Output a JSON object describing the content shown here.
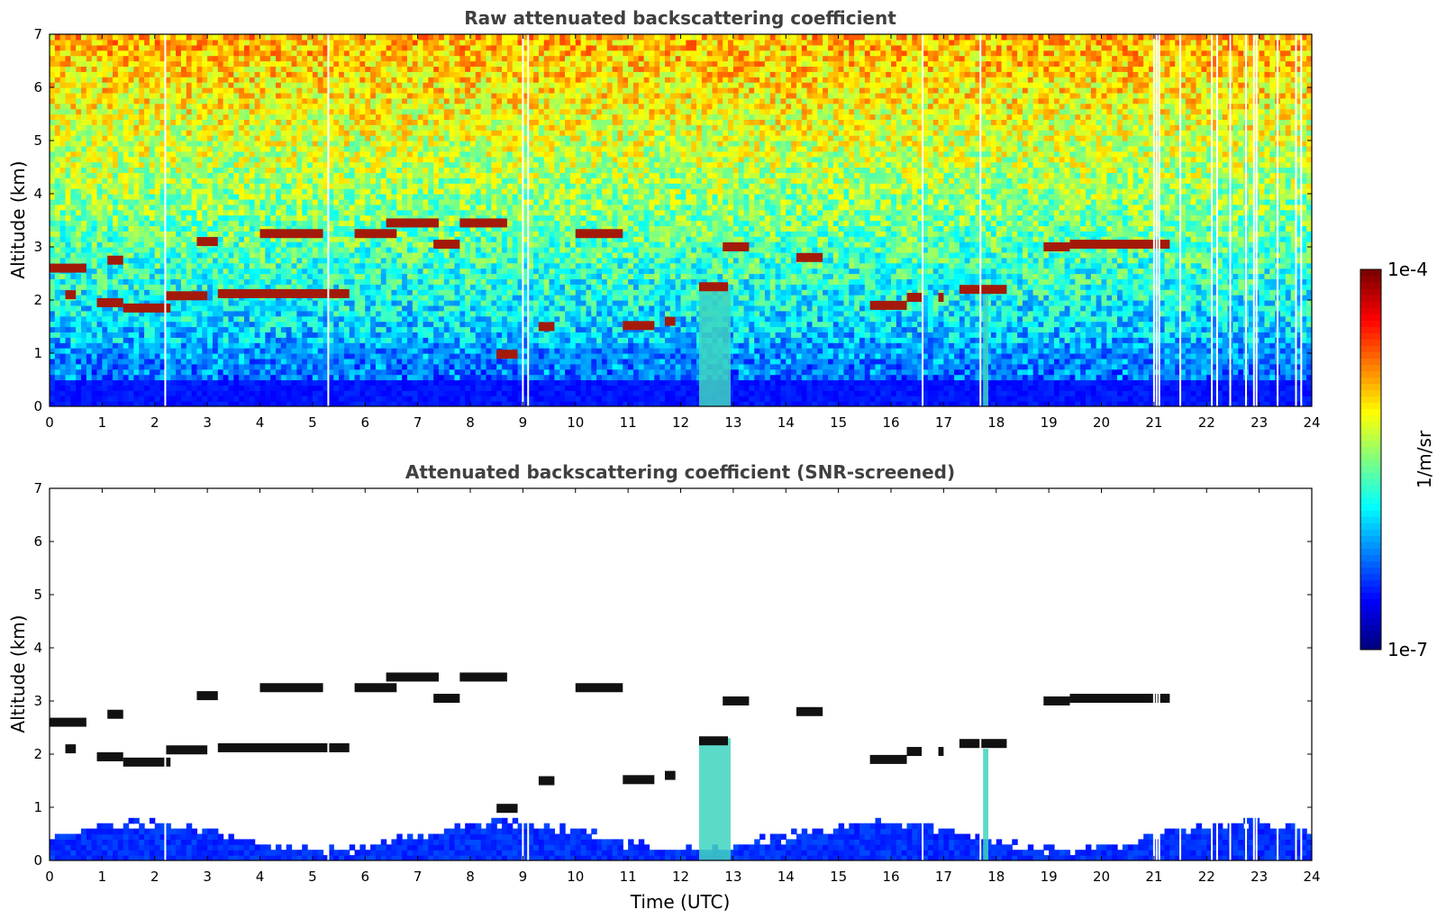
{
  "chart_data": [
    {
      "type": "heatmap",
      "title": "Raw attenuated backscattering coefficient",
      "xlabel": "",
      "ylabel": "Altitude (km)",
      "xlim": [
        0,
        24
      ],
      "ylim": [
        0,
        7
      ],
      "xticks": [
        "0",
        "1",
        "2",
        "3",
        "4",
        "5",
        "6",
        "7",
        "8",
        "9",
        "10",
        "11",
        "12",
        "13",
        "14",
        "15",
        "16",
        "17",
        "18",
        "19",
        "20",
        "21",
        "22",
        "23",
        "24"
      ],
      "yticks": [
        "0",
        "1",
        "2",
        "3",
        "4",
        "5",
        "6",
        "7"
      ],
      "screened": false,
      "cloud_layers": [
        {
          "t0": 0.0,
          "t1": 0.7,
          "alt": 2.6
        },
        {
          "t0": 0.3,
          "t1": 0.5,
          "alt": 2.1
        },
        {
          "t0": 0.9,
          "t1": 1.4,
          "alt": 1.95
        },
        {
          "t0": 1.1,
          "t1": 1.4,
          "alt": 2.75
        },
        {
          "t0": 1.4,
          "t1": 2.3,
          "alt": 1.85
        },
        {
          "t0": 2.2,
          "t1": 3.0,
          "alt": 2.08
        },
        {
          "t0": 2.8,
          "t1": 3.2,
          "alt": 3.1
        },
        {
          "t0": 3.2,
          "t1": 5.7,
          "alt": 2.12
        },
        {
          "t0": 4.0,
          "t1": 5.2,
          "alt": 3.25
        },
        {
          "t0": 5.8,
          "t1": 6.6,
          "alt": 3.25
        },
        {
          "t0": 6.4,
          "t1": 7.4,
          "alt": 3.45
        },
        {
          "t0": 7.3,
          "t1": 7.8,
          "alt": 3.05
        },
        {
          "t0": 7.8,
          "t1": 8.7,
          "alt": 3.45
        },
        {
          "t0": 8.5,
          "t1": 8.9,
          "alt": 0.98
        },
        {
          "t0": 9.3,
          "t1": 9.6,
          "alt": 1.5
        },
        {
          "t0": 10.0,
          "t1": 10.9,
          "alt": 3.25
        },
        {
          "t0": 10.9,
          "t1": 11.5,
          "alt": 1.52
        },
        {
          "t0": 11.7,
          "t1": 11.9,
          "alt": 1.6
        },
        {
          "t0": 12.35,
          "t1": 12.9,
          "alt": 2.25
        },
        {
          "t0": 12.8,
          "t1": 13.3,
          "alt": 3.0
        },
        {
          "t0": 14.2,
          "t1": 14.7,
          "alt": 2.8
        },
        {
          "t0": 15.6,
          "t1": 16.3,
          "alt": 1.9
        },
        {
          "t0": 16.3,
          "t1": 16.6,
          "alt": 2.05
        },
        {
          "t0": 16.9,
          "t1": 17.0,
          "alt": 2.05
        },
        {
          "t0": 17.3,
          "t1": 18.2,
          "alt": 2.2
        },
        {
          "t0": 18.9,
          "t1": 19.4,
          "alt": 3.0
        },
        {
          "t0": 19.4,
          "t1": 21.3,
          "alt": 3.05
        }
      ],
      "precip_shafts": [
        {
          "t0": 12.35,
          "t1": 12.95,
          "top": 2.3
        },
        {
          "t0": 17.75,
          "t1": 17.85,
          "top": 2.1
        }
      ],
      "data_gaps": [
        2.2,
        5.3,
        9.0,
        9.1,
        16.6,
        17.7,
        21.0,
        21.05,
        21.1,
        21.5,
        22.1,
        22.2,
        22.45,
        22.75,
        22.9,
        22.95,
        23.35,
        23.7,
        23.8
      ]
    },
    {
      "type": "heatmap",
      "title": "Attenuated backscattering coefficient (SNR-screened)",
      "xlabel": "Time (UTC)",
      "ylabel": "Altitude (km)",
      "xlim": [
        0,
        24
      ],
      "ylim": [
        0,
        7
      ],
      "xticks": [
        "0",
        "1",
        "2",
        "3",
        "4",
        "5",
        "6",
        "7",
        "8",
        "9",
        "10",
        "11",
        "12",
        "13",
        "14",
        "15",
        "16",
        "17",
        "18",
        "19",
        "20",
        "21",
        "22",
        "23",
        "24"
      ],
      "yticks": [
        "0",
        "1",
        "2",
        "3",
        "4",
        "5",
        "6",
        "7"
      ],
      "screened": true
    }
  ],
  "colorbar": {
    "label": "1/m/sr",
    "max_label": "1e-4",
    "min_label": "1e-7",
    "colormap": "jet",
    "scale": "log"
  }
}
